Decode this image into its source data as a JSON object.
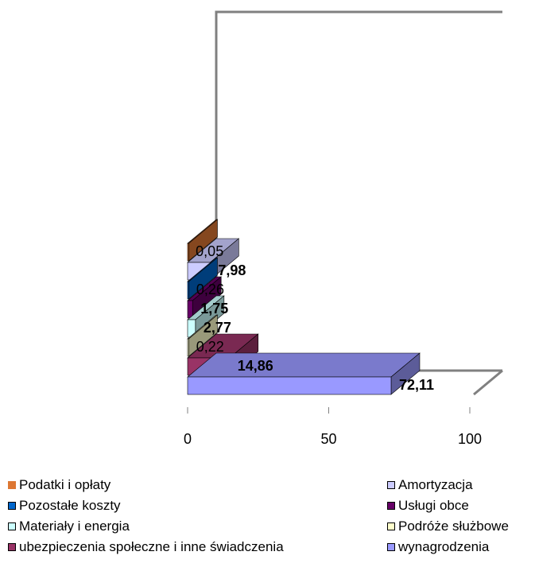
{
  "chart_data": {
    "type": "bar",
    "orientation": "horizontal-3d",
    "x_ticks": [
      "0",
      "50",
      "100"
    ],
    "xlim": [
      0,
      100
    ],
    "grid": false,
    "legend_placement": "bottom",
    "series": [
      {
        "name": "wynagrodzenia",
        "value": 72.11,
        "label": "72,11",
        "color": "#9999FF"
      },
      {
        "name": "ubezpieczenia społeczne i inne świadczenia",
        "value": 14.86,
        "label": "14,86",
        "color": "#993366"
      },
      {
        "name": "Podróże służbowe",
        "value": 0.22,
        "label": "0,22",
        "color": "#FFFFCC"
      },
      {
        "name": "Materiały i energia",
        "value": 2.77,
        "label": "2,77",
        "color": "#CCFFFF"
      },
      {
        "name": "Usługi obce",
        "value": 1.75,
        "label": "1,75",
        "color": "#660066"
      },
      {
        "name": "Pozostałe koszty",
        "value": 0.26,
        "label": "0,26",
        "color": "#0066CC"
      },
      {
        "name": "Amortyzacja",
        "value": 7.98,
        "label": "7,98",
        "color": "#CCCCFF"
      },
      {
        "name": "Podatki i opłaty",
        "value": 0.05,
        "label": "0,05",
        "color": "#DD7733"
      }
    ]
  },
  "legend": {
    "left": [
      {
        "label": "Podatki i opłaty",
        "color": "#DD7733"
      },
      {
        "label": "Pozostałe koszty",
        "color": "#0066CC"
      },
      {
        "label": "Materiały i energia",
        "color": "#CCFFFF"
      },
      {
        "label": "ubezpieczenia społeczne i inne świadczenia",
        "color": "#993366"
      }
    ],
    "right": [
      {
        "label": "Amortyzacja",
        "color": "#CCCCFF"
      },
      {
        "label": "Usługi obce",
        "color": "#660066"
      },
      {
        "label": "Podróże służbowe",
        "color": "#FFFFCC"
      },
      {
        "label": "wynagrodzenia",
        "color": "#9999FF"
      }
    ]
  }
}
